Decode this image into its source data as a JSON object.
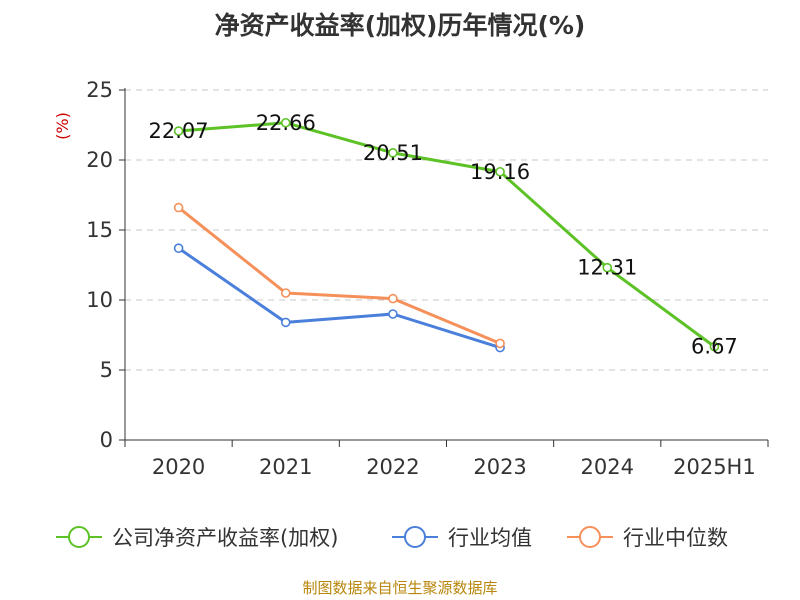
{
  "chart_data": {
    "type": "line",
    "title": "净资产收益率(加权)历年情况(%)",
    "ylabel": "(%)",
    "ylim": [
      0,
      25
    ],
    "yticks": [
      0,
      5,
      10,
      15,
      20,
      25
    ],
    "categories": [
      "2020",
      "2021",
      "2022",
      "2023",
      "2024",
      "2025H1"
    ],
    "grid": true,
    "legend_position": "bottom",
    "series": [
      {
        "name": "公司净资产收益率(加权)",
        "color": "#5cc226",
        "values": [
          22.07,
          22.66,
          20.51,
          19.16,
          12.31,
          6.67
        ],
        "labels": [
          "22.07",
          "22.66",
          "20.51",
          "19.16",
          "12.31",
          "6.67"
        ]
      },
      {
        "name": "行业均值",
        "color": "#4a7fdb",
        "values": [
          13.7,
          8.4,
          9.0,
          6.6,
          null,
          null
        ]
      },
      {
        "name": "行业中位数",
        "color": "#f5905a",
        "values": [
          16.6,
          10.5,
          10.1,
          6.9,
          null,
          null
        ]
      }
    ]
  },
  "source": "制图数据来自恒生聚源数据库"
}
